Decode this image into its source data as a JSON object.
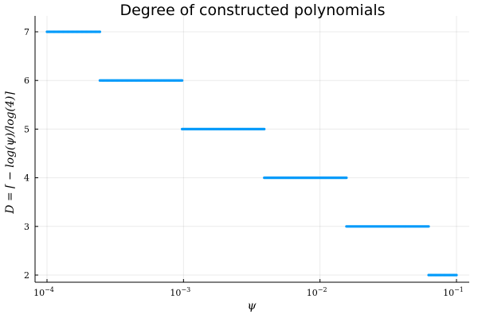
{
  "chart_data": {
    "type": "scatter",
    "title": "Degree of constructed polynomials",
    "xlabel": "ψ",
    "ylabel": "D = ⌈ − log(ψ)/log(4)⌉",
    "xscale": "log",
    "xlim": [
      0.0001,
      0.1
    ],
    "ylim": [
      2,
      7
    ],
    "x_ticks": [
      {
        "base": "10",
        "exp": "−4",
        "value": 0.0001
      },
      {
        "base": "10",
        "exp": "−3",
        "value": 0.001
      },
      {
        "base": "10",
        "exp": "−2",
        "value": 0.01
      },
      {
        "base": "10",
        "exp": "−1",
        "value": 0.1
      }
    ],
    "y_ticks": [
      "2",
      "3",
      "4",
      "5",
      "6",
      "7"
    ],
    "grid": true,
    "legend": "none",
    "series": [
      {
        "color": "#009AFA",
        "segments": [
          {
            "y": 7,
            "x": [
              0.0001,
              0.000244
            ]
          },
          {
            "y": 6,
            "x": [
              0.000244,
              0.000977
            ]
          },
          {
            "y": 5,
            "x": [
              0.000977,
              0.003906
            ]
          },
          {
            "y": 4,
            "x": [
              0.003906,
              0.015625
            ]
          },
          {
            "y": 3,
            "x": [
              0.015625,
              0.0625
            ]
          },
          {
            "y": 2,
            "x": [
              0.0625,
              0.1
            ]
          }
        ]
      }
    ]
  }
}
